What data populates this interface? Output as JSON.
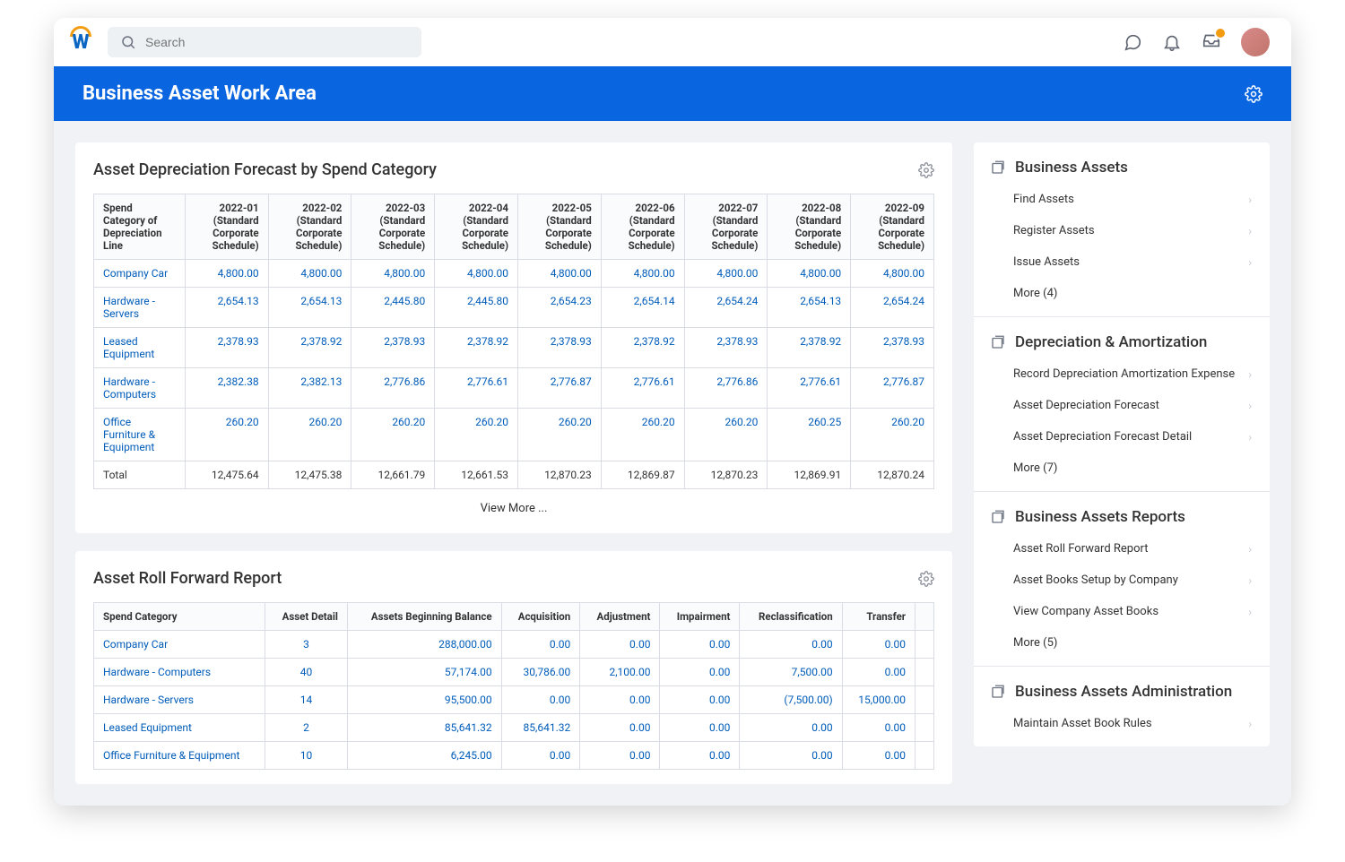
{
  "colors": {
    "primary": "#0a66e0",
    "link": "#005cb9",
    "accent": "#f39c12",
    "headerBg": "#fafbfc",
    "border": "#d9dde3"
  },
  "search": {
    "placeholder": "Search"
  },
  "page": {
    "title": "Business Asset Work Area"
  },
  "forecast": {
    "title": "Asset Depreciation Forecast by Spend Category",
    "firstCol": "Spend Category of Depreciation Line",
    "headers": [
      "2022-01 (Standard Corporate Schedule)",
      "2022-02 (Standard Corporate Schedule)",
      "2022-03 (Standard Corporate Schedule)",
      "2022-04 (Standard Corporate Schedule)",
      "2022-05 (Standard Corporate Schedule)",
      "2022-06 (Standard Corporate Schedule)",
      "2022-07 (Standard Corporate Schedule)",
      "2022-08 (Standard Corporate Schedule)",
      "2022-09 (Standard Corporate Schedule)"
    ],
    "rows": [
      {
        "label": "Company Car",
        "vals": [
          "4,800.00",
          "4,800.00",
          "4,800.00",
          "4,800.00",
          "4,800.00",
          "4,800.00",
          "4,800.00",
          "4,800.00",
          "4,800.00"
        ]
      },
      {
        "label": "Hardware - Servers",
        "vals": [
          "2,654.13",
          "2,654.13",
          "2,445.80",
          "2,445.80",
          "2,654.23",
          "2,654.14",
          "2,654.24",
          "2,654.13",
          "2,654.24"
        ]
      },
      {
        "label": "Leased Equipment",
        "vals": [
          "2,378.93",
          "2,378.92",
          "2,378.93",
          "2,378.92",
          "2,378.93",
          "2,378.92",
          "2,378.93",
          "2,378.92",
          "2,378.93"
        ]
      },
      {
        "label": "Hardware - Computers",
        "vals": [
          "2,382.38",
          "2,382.13",
          "2,776.86",
          "2,776.61",
          "2,776.87",
          "2,776.61",
          "2,776.86",
          "2,776.61",
          "2,776.87"
        ]
      },
      {
        "label": "Office Furniture & Equipment",
        "vals": [
          "260.20",
          "260.20",
          "260.20",
          "260.20",
          "260.20",
          "260.20",
          "260.20",
          "260.25",
          "260.20"
        ]
      }
    ],
    "totalLabel": "Total",
    "totals": [
      "12,475.64",
      "12,475.38",
      "12,661.79",
      "12,661.53",
      "12,870.23",
      "12,869.87",
      "12,870.23",
      "12,869.91",
      "12,870.24"
    ],
    "viewMore": "View More ..."
  },
  "rollforward": {
    "title": "Asset Roll Forward Report",
    "headers": [
      "Spend Category",
      "Asset Detail",
      "Assets Beginning Balance",
      "Acquisition",
      "Adjustment",
      "Impairment",
      "Reclassification",
      "Transfer"
    ],
    "rows": [
      {
        "label": "Company Car",
        "detail": "3",
        "vals": [
          "288,000.00",
          "0.00",
          "0.00",
          "0.00",
          "0.00",
          "0.00"
        ]
      },
      {
        "label": "Hardware - Computers",
        "detail": "40",
        "vals": [
          "57,174.00",
          "30,786.00",
          "2,100.00",
          "0.00",
          "7,500.00",
          "0.00"
        ]
      },
      {
        "label": "Hardware - Servers",
        "detail": "14",
        "vals": [
          "95,500.00",
          "0.00",
          "0.00",
          "0.00",
          "(7,500.00)",
          "15,000.00"
        ]
      },
      {
        "label": "Leased Equipment",
        "detail": "2",
        "vals": [
          "85,641.32",
          "85,641.32",
          "0.00",
          "0.00",
          "0.00",
          "0.00"
        ]
      },
      {
        "label": "Office Furniture & Equipment",
        "detail": "10",
        "vals": [
          "6,245.00",
          "0.00",
          "0.00",
          "0.00",
          "0.00",
          "0.00"
        ]
      }
    ]
  },
  "side": {
    "sections": [
      {
        "title": "Business Assets",
        "items": [
          {
            "label": "Find Assets",
            "chev": true
          },
          {
            "label": "Register Assets",
            "chev": true
          },
          {
            "label": "Issue Assets",
            "chev": true
          },
          {
            "label": "More (4)",
            "chev": false
          }
        ]
      },
      {
        "title": "Depreciation & Amortization",
        "items": [
          {
            "label": "Record Depreciation Amortization Expense",
            "chev": true
          },
          {
            "label": "Asset Depreciation Forecast",
            "chev": true
          },
          {
            "label": "Asset Depreciation Forecast Detail",
            "chev": true
          },
          {
            "label": "More (7)",
            "chev": false
          }
        ]
      },
      {
        "title": "Business Assets Reports",
        "items": [
          {
            "label": "Asset Roll Forward Report",
            "chev": true
          },
          {
            "label": "Asset Books Setup by Company",
            "chev": true
          },
          {
            "label": "View Company Asset Books",
            "chev": true
          },
          {
            "label": "More (5)",
            "chev": false
          }
        ]
      },
      {
        "title": "Business Assets Administration",
        "items": [
          {
            "label": "Maintain Asset Book Rules",
            "chev": true
          }
        ]
      }
    ]
  }
}
